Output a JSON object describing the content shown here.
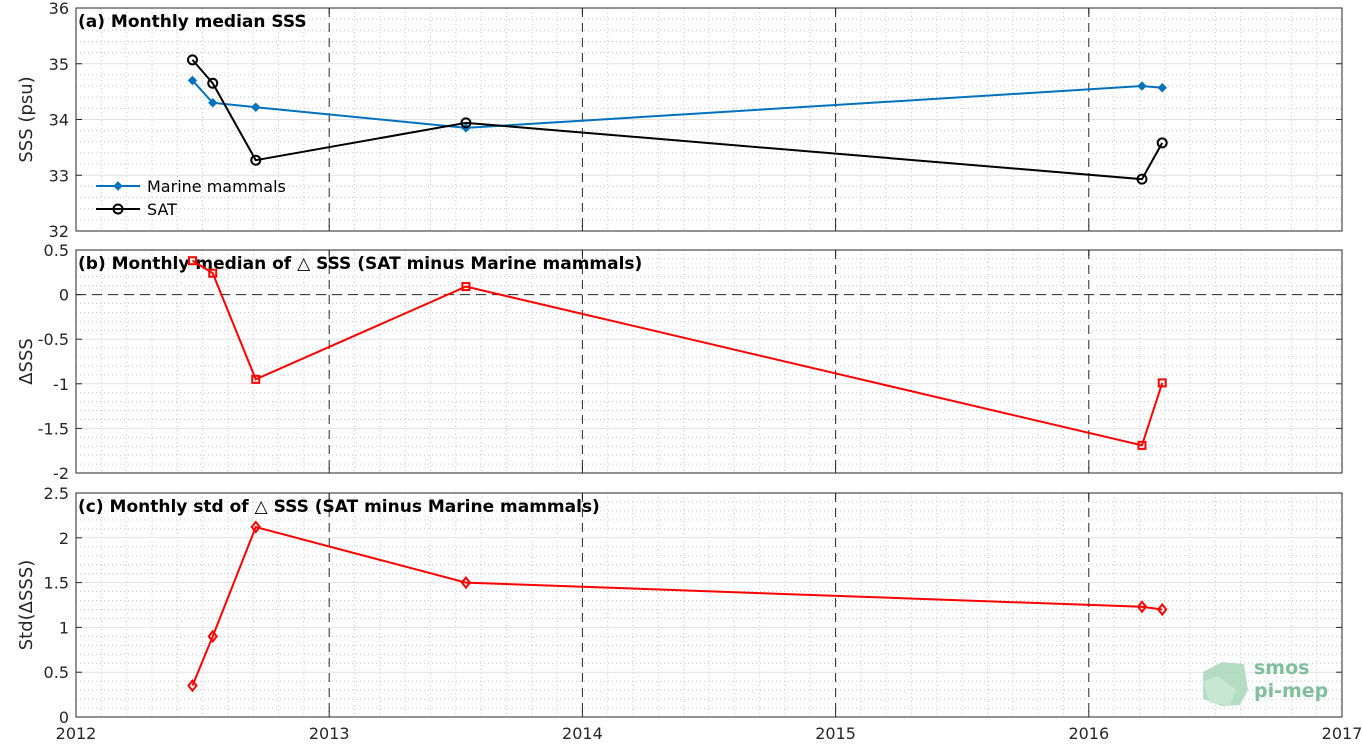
{
  "chart_data": [
    {
      "type": "line",
      "title": "(a) Monthly median SSS",
      "ylabel": "SSS (psu)",
      "xlim": [
        2012,
        2017
      ],
      "ylim": [
        32,
        36
      ],
      "yticks": [
        "32",
        "33",
        "34",
        "35",
        "36"
      ],
      "grid": true,
      "legend_position": "bottom-left",
      "series": [
        {
          "name": "Marine mammals",
          "color": "#0072bd",
          "marker": "diamond-filled",
          "x": [
            2012.46,
            2012.54,
            2012.71,
            2013.54,
            2016.21,
            2016.29
          ],
          "y": [
            34.7,
            34.3,
            34.22,
            33.85,
            34.6,
            34.57
          ]
        },
        {
          "name": "SAT",
          "color": "#000000",
          "marker": "circle-open",
          "x": [
            2012.46,
            2012.54,
            2012.71,
            2013.54,
            2016.21,
            2016.29
          ],
          "y": [
            35.07,
            34.65,
            33.27,
            33.94,
            32.93,
            33.58
          ]
        }
      ]
    },
    {
      "type": "line",
      "title": "(b) Monthly median of △ SSS (SAT minus Marine mammals)",
      "ylabel": "ΔSSS",
      "xlim": [
        2012,
        2017
      ],
      "ylim": [
        -2,
        0.5
      ],
      "yticks": [
        "-2",
        "-1.5",
        "-1",
        "-0.5",
        "0",
        "0.5"
      ],
      "zero_line": "dashed",
      "grid": true,
      "series": [
        {
          "color": "#ff0000",
          "marker": "square-open",
          "x": [
            2012.46,
            2012.54,
            2012.71,
            2013.54,
            2016.21,
            2016.29
          ],
          "y": [
            0.38,
            0.24,
            -0.95,
            0.09,
            -1.69,
            -0.99
          ]
        }
      ]
    },
    {
      "type": "line",
      "title": "(c) Monthly std of △ SSS (SAT minus Marine mammals)",
      "ylabel": "Std(ΔSSS)",
      "xlim": [
        2012,
        2017
      ],
      "ylim": [
        0,
        2.5
      ],
      "yticks": [
        "0",
        "0.5",
        "1",
        "1.5",
        "2",
        "2.5"
      ],
      "xticks": [
        "2012",
        "2013",
        "2014",
        "2015",
        "2016",
        "2017"
      ],
      "grid": true,
      "series": [
        {
          "color": "#ff0000",
          "marker": "diamond-open",
          "x": [
            2012.46,
            2012.54,
            2012.71,
            2013.54,
            2016.21,
            2016.29
          ],
          "y": [
            0.35,
            0.9,
            2.12,
            1.5,
            1.23,
            1.2
          ]
        }
      ]
    }
  ],
  "logo": {
    "line1": "smos",
    "line2": "pi-mep",
    "color": "#7fbf9a"
  }
}
